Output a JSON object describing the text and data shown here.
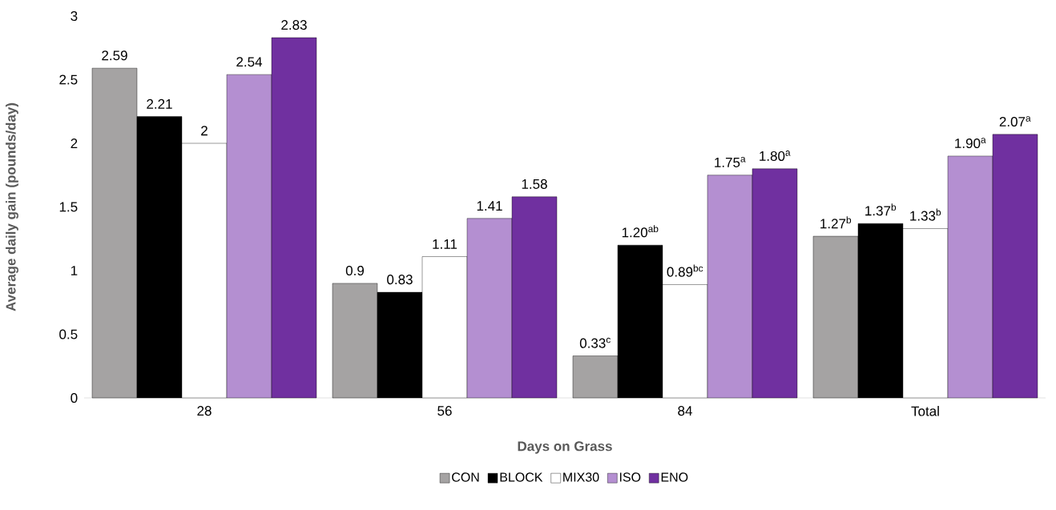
{
  "chart_data": {
    "type": "bar",
    "xlabel": "Days on Grass",
    "ylabel": "Average daily gain (pounds/day)",
    "categories": [
      "28",
      "56",
      "84",
      "Total"
    ],
    "series": [
      {
        "name": "CON",
        "color": "#a5a3a3",
        "values": [
          2.59,
          0.9,
          0.33,
          1.27
        ],
        "value_labels": [
          "2.59",
          "0.9",
          "0.33$^{c}$",
          "1.27$^{b}$"
        ]
      },
      {
        "name": "BLOCK",
        "color": "#000000",
        "values": [
          2.21,
          0.83,
          1.2,
          1.37
        ],
        "value_labels": [
          "2.21",
          "0.83",
          "1.20$^{ab}$",
          "1.37$^{b}$"
        ]
      },
      {
        "name": "MIX30",
        "color": "#ffffff",
        "values": [
          2,
          1.11,
          0.89,
          1.33
        ],
        "value_labels": [
          "2",
          "1.11",
          "0.89$^{bc}$",
          "1.33$^{b}$"
        ]
      },
      {
        "name": "ISO",
        "color": "#b48fd1",
        "values": [
          2.54,
          1.41,
          1.75,
          1.9
        ],
        "value_labels": [
          "2.54",
          "1.41",
          "1.75$^{a}$",
          "1.90$^{a}$"
        ]
      },
      {
        "name": "ENO",
        "color": "#7030a0",
        "values": [
          2.83,
          1.58,
          1.8,
          2.07
        ],
        "value_labels": [
          "2.83",
          "1.58",
          "1.80$^{a}$",
          "2.07$^{a}$"
        ]
      }
    ],
    "ylim": [
      0,
      3
    ],
    "yticks": [
      0,
      0.5,
      1,
      1.5,
      2,
      2.5,
      3
    ],
    "legend": "bottom"
  }
}
